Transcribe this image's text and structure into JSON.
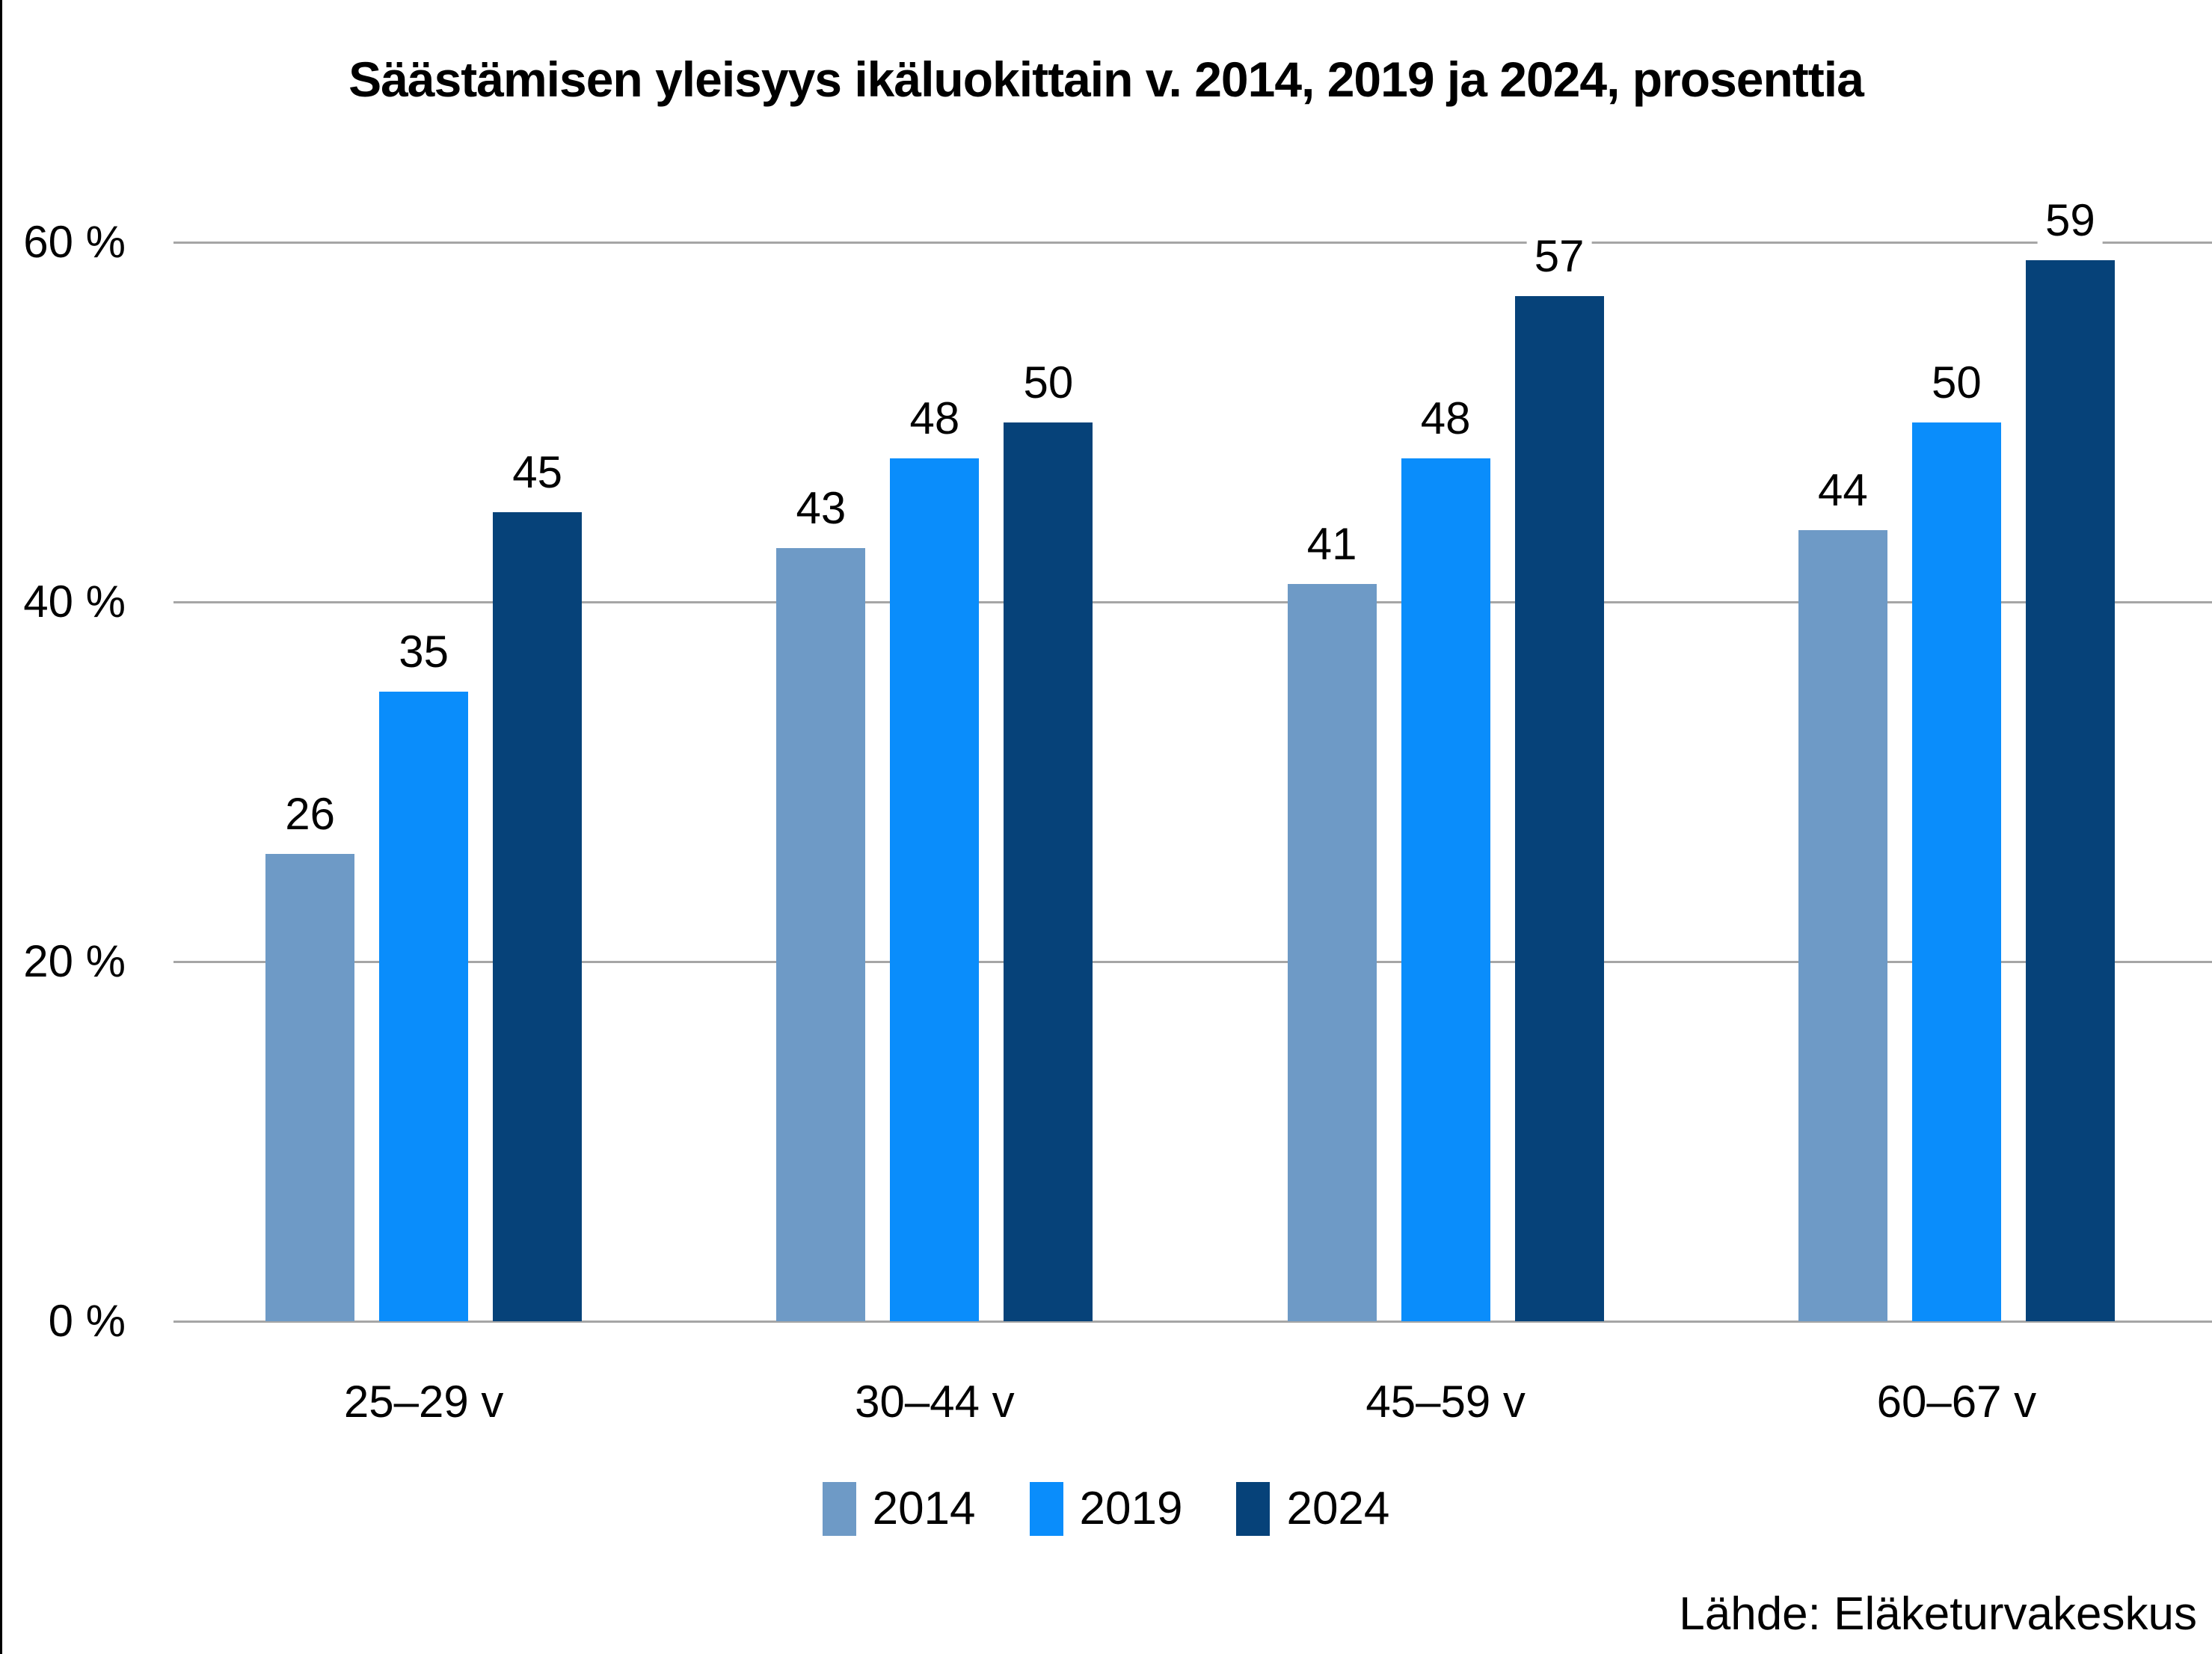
{
  "chart_data": {
    "type": "bar",
    "title": "Säästämisen yleisyys ikäluokittain v. 2014, 2019 ja 2024, prosenttia",
    "categories": [
      "25–29 v",
      "30–44 v",
      "45–59 v",
      "60–67 v"
    ],
    "series": [
      {
        "name": "2014",
        "color": "#6e9ac6",
        "values": [
          26,
          43,
          41,
          44
        ]
      },
      {
        "name": "2019",
        "color": "#0a8dfb",
        "values": [
          35,
          48,
          48,
          50
        ]
      },
      {
        "name": "2024",
        "color": "#064279",
        "values": [
          45,
          50,
          57,
          59
        ]
      }
    ],
    "y_ticks": [
      {
        "value": 60,
        "label": "60 %"
      },
      {
        "value": 40,
        "label": "40 %"
      },
      {
        "value": 20,
        "label": "20 %"
      },
      {
        "value": 0,
        "label": "0 %"
      }
    ],
    "ylim": [
      0,
      62
    ],
    "ylabel": "",
    "xlabel": "",
    "grid": true,
    "legend_position": "bottom",
    "value_labels": true
  },
  "source": {
    "label": "Lähde: Eläketurvakeskus"
  },
  "colors": {
    "gridline": "#a6a6a6",
    "axis_line": "#a6a6a6",
    "text": "#000000",
    "background": "#ffffff",
    "left_border": "#000000"
  }
}
